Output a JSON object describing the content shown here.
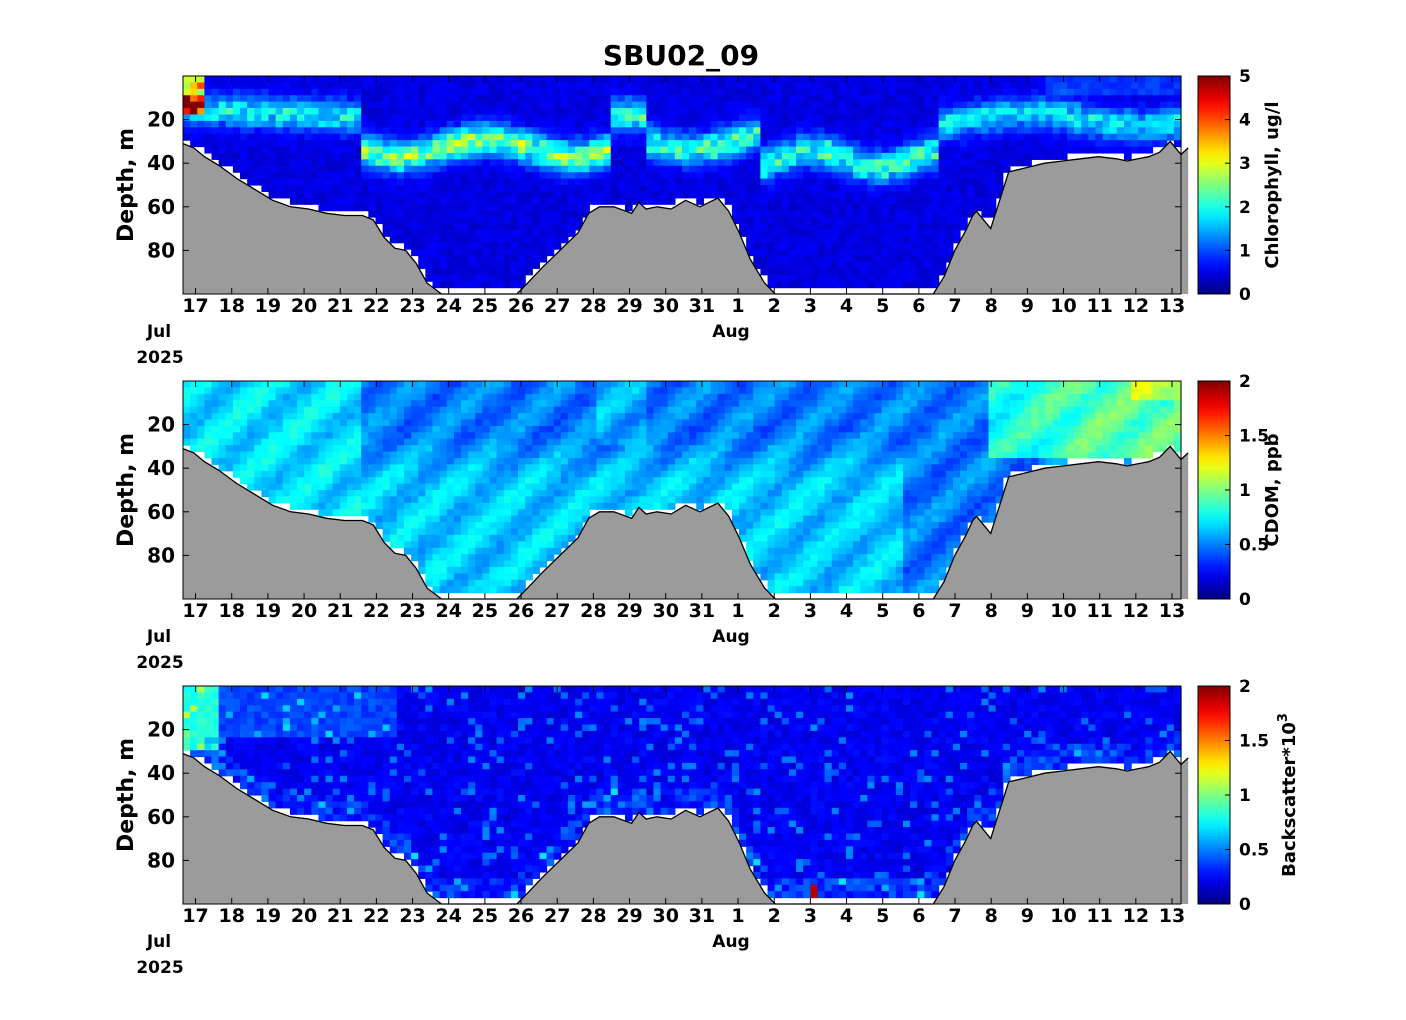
{
  "figure": {
    "title": "SBU02_09"
  },
  "chart_data": [
    {
      "type": "heatmap",
      "title": "SBU02_09",
      "ylabel": "Depth, m",
      "yticks": [
        20,
        40,
        60,
        80
      ],
      "ylim": [
        100,
        0
      ],
      "x_start": "2025-07-16",
      "x_end": "2025-08-13",
      "xtick_labels": [
        "17",
        "18",
        "19",
        "20",
        "21",
        "22",
        "23",
        "24",
        "25",
        "26",
        "27",
        "28",
        "29",
        "30",
        "31",
        "1",
        "2",
        "3",
        "4",
        "5",
        "6",
        "7",
        "8",
        "9",
        "10",
        "11",
        "12",
        "13"
      ],
      "month_labels": [
        "Jul",
        "Aug"
      ],
      "year_label": "2025",
      "colorbar": {
        "label": "Chlorophyll, ug/l",
        "min": 0,
        "max": 5,
        "ticks": [
          "0",
          "1",
          "2",
          "3",
          "4",
          "5"
        ],
        "colormap": "jet"
      },
      "variable": "chl"
    },
    {
      "type": "heatmap",
      "title": "",
      "ylabel": "Depth, m",
      "yticks": [
        20,
        40,
        60,
        80
      ],
      "ylim": [
        100,
        0
      ],
      "x_start": "2025-07-16",
      "x_end": "2025-08-13",
      "xtick_labels": [
        "17",
        "18",
        "19",
        "20",
        "21",
        "22",
        "23",
        "24",
        "25",
        "26",
        "27",
        "28",
        "29",
        "30",
        "31",
        "1",
        "2",
        "3",
        "4",
        "5",
        "6",
        "7",
        "8",
        "9",
        "10",
        "11",
        "12",
        "13"
      ],
      "month_labels": [
        "Jul",
        "Aug"
      ],
      "year_label": "2025",
      "colorbar": {
        "label": "CDOM, ppb",
        "min": 0,
        "max": 2,
        "ticks": [
          "0",
          "0.5",
          "1",
          "1.5",
          "2"
        ],
        "colormap": "jet"
      },
      "variable": "cdom"
    },
    {
      "type": "heatmap",
      "title": "",
      "ylabel": "Depth, m",
      "yticks": [
        20,
        40,
        60,
        80
      ],
      "ylim": [
        100,
        0
      ],
      "x_start": "2025-07-16",
      "x_end": "2025-08-13",
      "xtick_labels": [
        "17",
        "18",
        "19",
        "20",
        "21",
        "22",
        "23",
        "24",
        "25",
        "26",
        "27",
        "28",
        "29",
        "30",
        "31",
        "1",
        "2",
        "3",
        "4",
        "5",
        "6",
        "7",
        "8",
        "9",
        "10",
        "11",
        "12",
        "13"
      ],
      "month_labels": [
        "Jul",
        "Aug"
      ],
      "year_label": "2025",
      "colorbar": {
        "label": "Backscatter*10",
        "label_superscript": "3",
        "min": 0,
        "max": 2,
        "ticks": [
          "0",
          "0.5",
          "1",
          "1.5",
          "2"
        ],
        "colormap": "jet"
      },
      "variable": "bb"
    }
  ],
  "bathymetry": {
    "x_days_since_start": [
      0,
      0.3,
      0.6,
      1.0,
      1.5,
      2.0,
      2.5,
      3.0,
      3.5,
      4.0,
      4.5,
      5.0,
      5.3,
      5.6,
      5.9,
      6.2,
      6.5,
      6.8,
      7.2,
      7.5,
      8.0,
      8.5,
      9.0,
      9.3,
      9.6,
      10.0,
      10.5,
      11.0,
      11.3,
      11.6,
      12.0,
      12.5,
      12.7,
      12.9,
      13.2,
      13.6,
      14.0,
      14.4,
      14.9,
      15.2,
      15.5,
      15.8,
      16.2,
      16.5,
      17.0,
      17.5,
      18.0,
      18.5,
      19.0,
      19.4,
      19.7,
      20.0,
      20.3,
      20.6,
      20.9,
      21.2,
      21.5,
      21.8,
      22.0,
      22.1,
      22.5,
      23.0,
      23.5,
      24.0,
      24.5,
      25.0,
      25.5,
      26.0,
      26.3,
      26.6,
      26.9,
      27.2,
      27.5,
      27.8,
      28.0
    ],
    "depth_m": [
      31,
      33,
      37,
      41,
      47,
      52,
      57,
      60,
      61,
      63,
      64,
      64,
      66,
      74,
      79,
      80,
      86,
      95,
      100,
      100,
      100,
      100,
      100,
      100,
      95,
      88,
      80,
      72,
      63,
      60,
      60,
      63,
      58,
      61,
      60,
      61,
      57,
      60,
      56,
      62,
      72,
      84,
      95,
      100,
      100,
      100,
      100,
      100,
      100,
      100,
      100,
      100,
      100,
      100,
      100,
      92,
      80,
      71,
      64,
      62,
      70,
      44,
      42,
      40,
      39,
      38,
      37,
      38,
      39,
      38,
      37,
      35,
      30,
      36,
      33
    ]
  }
}
